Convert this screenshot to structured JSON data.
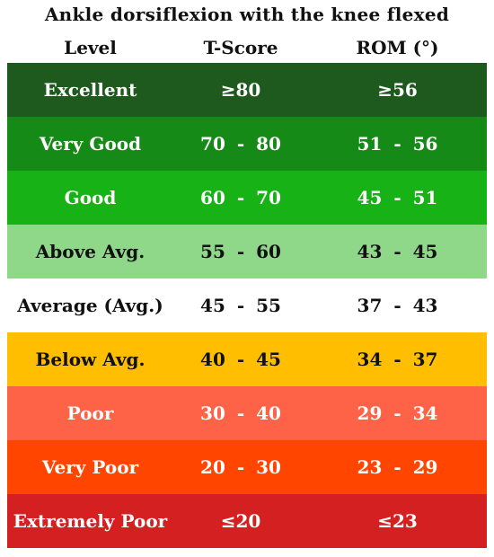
{
  "title": "Ankle dorsiflexion with the knee flexed",
  "headers": {
    "level": "Level",
    "tscore": "T-Score",
    "rom": "ROM (°)"
  },
  "rows": [
    {
      "level": "Excellent",
      "tscore": "≥80",
      "rom": "≥56",
      "color": "#1e5a1e",
      "text_color": "light"
    },
    {
      "level": "Very Good",
      "tscore": "70 - 80",
      "rom": "51 - 56",
      "color": "#168a16",
      "text_color": "light"
    },
    {
      "level": "Good",
      "tscore": "60 - 70",
      "rom": "45 - 51",
      "color": "#16b216",
      "text_color": "light"
    },
    {
      "level": "Above Avg.",
      "tscore": "55 - 60",
      "rom": "43 - 45",
      "color": "#8fd88a",
      "text_color": "dark"
    },
    {
      "level": "Average (Avg.)",
      "tscore": "45 - 55",
      "rom": "37 - 43",
      "color": "#ffffff",
      "text_color": "dark"
    },
    {
      "level": "Below Avg.",
      "tscore": "40 - 45",
      "rom": "34 - 37",
      "color": "#ffbf00",
      "text_color": "dark"
    },
    {
      "level": "Poor",
      "tscore": "30 - 40",
      "rom": "29 - 34",
      "color": "#ff6347",
      "text_color": "light"
    },
    {
      "level": "Very Poor",
      "tscore": "20 - 30",
      "rom": "23 - 29",
      "color": "#ff4500",
      "text_color": "light"
    },
    {
      "level": "Extremely Poor",
      "tscore": "≤20",
      "rom": "≤23",
      "color": "#d42020",
      "text_color": "light"
    }
  ]
}
